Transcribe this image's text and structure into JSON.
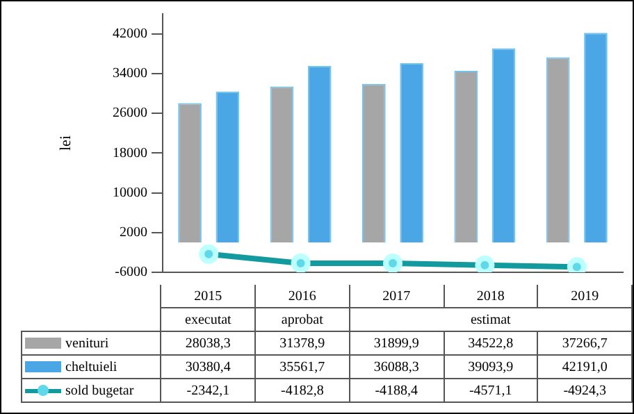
{
  "chart_data": {
    "type": "bar",
    "ylabel": "lei",
    "categories": [
      "2015",
      "2016",
      "2017",
      "2018",
      "2019"
    ],
    "series": [
      {
        "name": "venituri",
        "color": "#a6a6a6",
        "values": [
          28038.3,
          31378.9,
          31899.9,
          34522.8,
          37266.7
        ],
        "value_labels": [
          "28038,3",
          "31378,9",
          "31899,9",
          "34522,8",
          "37266,7"
        ]
      },
      {
        "name": "cheltuieli",
        "color": "#4ba6e6",
        "values": [
          30380.4,
          35561.7,
          36088.3,
          39093.9,
          42191.0
        ],
        "value_labels": [
          "30380,4",
          "35561,7",
          "36088,3",
          "39093,9",
          "42191,0"
        ]
      },
      {
        "name": "sold bugetar",
        "type": "line",
        "color": "#139a9e",
        "values": [
          -2342.1,
          -4182.8,
          -4188.4,
          -4571.1,
          -4924.3
        ],
        "value_labels": [
          "-2342,1",
          "-4182,8",
          "-4188,4",
          "-4571,1",
          "-4924,3"
        ]
      }
    ],
    "ylim": [
      -6000,
      46000
    ],
    "yticks": [
      -6000,
      2000,
      10000,
      18000,
      26000,
      34000,
      42000
    ],
    "annotations": [
      "executat",
      "aprobat",
      "estimat"
    ],
    "legend": "bottom",
    "marker": "circle",
    "grid": false
  }
}
